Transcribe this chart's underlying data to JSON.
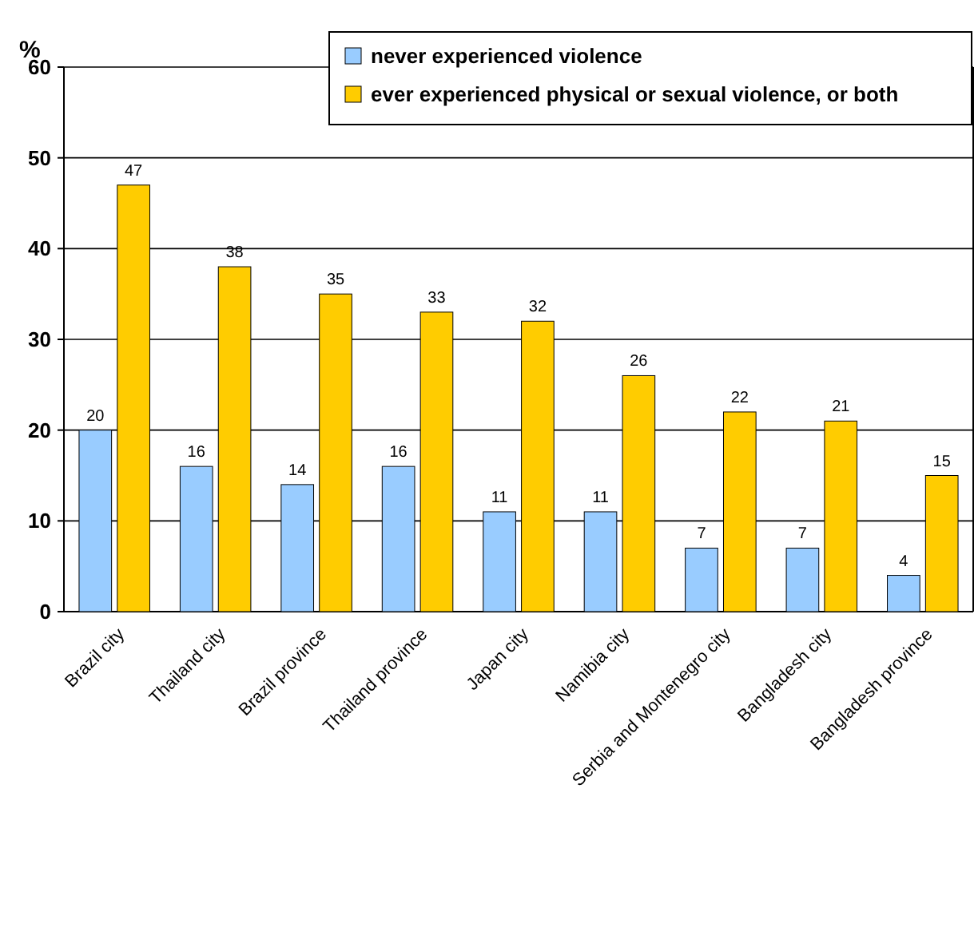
{
  "chart_data": {
    "type": "bar",
    "ylabel": "%",
    "categories": [
      "Brazil city",
      "Thailand city",
      "Brazil province",
      "Thailand province",
      "Japan city",
      "Namibia city",
      "Serbia and Montenegro city",
      "Bangladesh city",
      "Bangladesh province"
    ],
    "series": [
      {
        "name": "never experienced violence",
        "color": "#99ccff",
        "values": [
          20,
          16,
          14,
          16,
          11,
          11,
          7,
          7,
          4
        ]
      },
      {
        "name": "ever experienced physical or sexual violence, or both",
        "color": "#ffcc00",
        "values": [
          47,
          38,
          35,
          33,
          32,
          26,
          22,
          21,
          15
        ]
      }
    ],
    "ylim": [
      0,
      60
    ],
    "yticks": [
      0,
      10,
      20,
      30,
      40,
      50,
      60
    ],
    "grid": "y",
    "legend": "top right",
    "data_labels": true
  }
}
